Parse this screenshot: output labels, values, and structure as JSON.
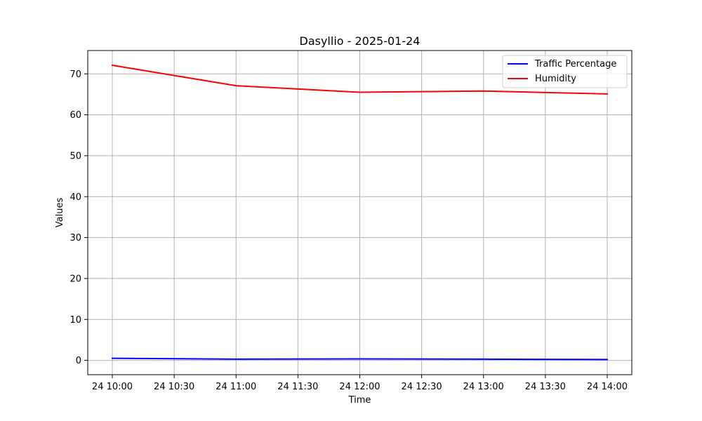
{
  "chart_data": {
    "type": "line",
    "title": "Dasyllio - 2025-01-24",
    "xlabel": "Time",
    "ylabel": "Values",
    "x": [
      "24 10:00",
      "24 11:00",
      "24 12:00",
      "24 13:00",
      "24 14:00"
    ],
    "x_ticks": [
      "24 10:00",
      "24 10:30",
      "24 11:00",
      "24 11:30",
      "24 12:00",
      "24 12:30",
      "24 13:00",
      "24 13:30",
      "24 14:00"
    ],
    "y_ticks": [
      "0",
      "10",
      "20",
      "30",
      "40",
      "50",
      "60",
      "70"
    ],
    "ylim": [
      -3.5,
      75.7
    ],
    "grid": true,
    "legend_position": "top-right",
    "series": [
      {
        "name": "Traffic Percentage",
        "color": "#0000ff",
        "values": [
          0.5,
          0.3,
          0.35,
          0.3,
          0.2
        ]
      },
      {
        "name": "Humidity",
        "color": "#ff0000",
        "values": [
          72.1,
          67.1,
          65.5,
          65.8,
          65.1
        ]
      }
    ]
  }
}
